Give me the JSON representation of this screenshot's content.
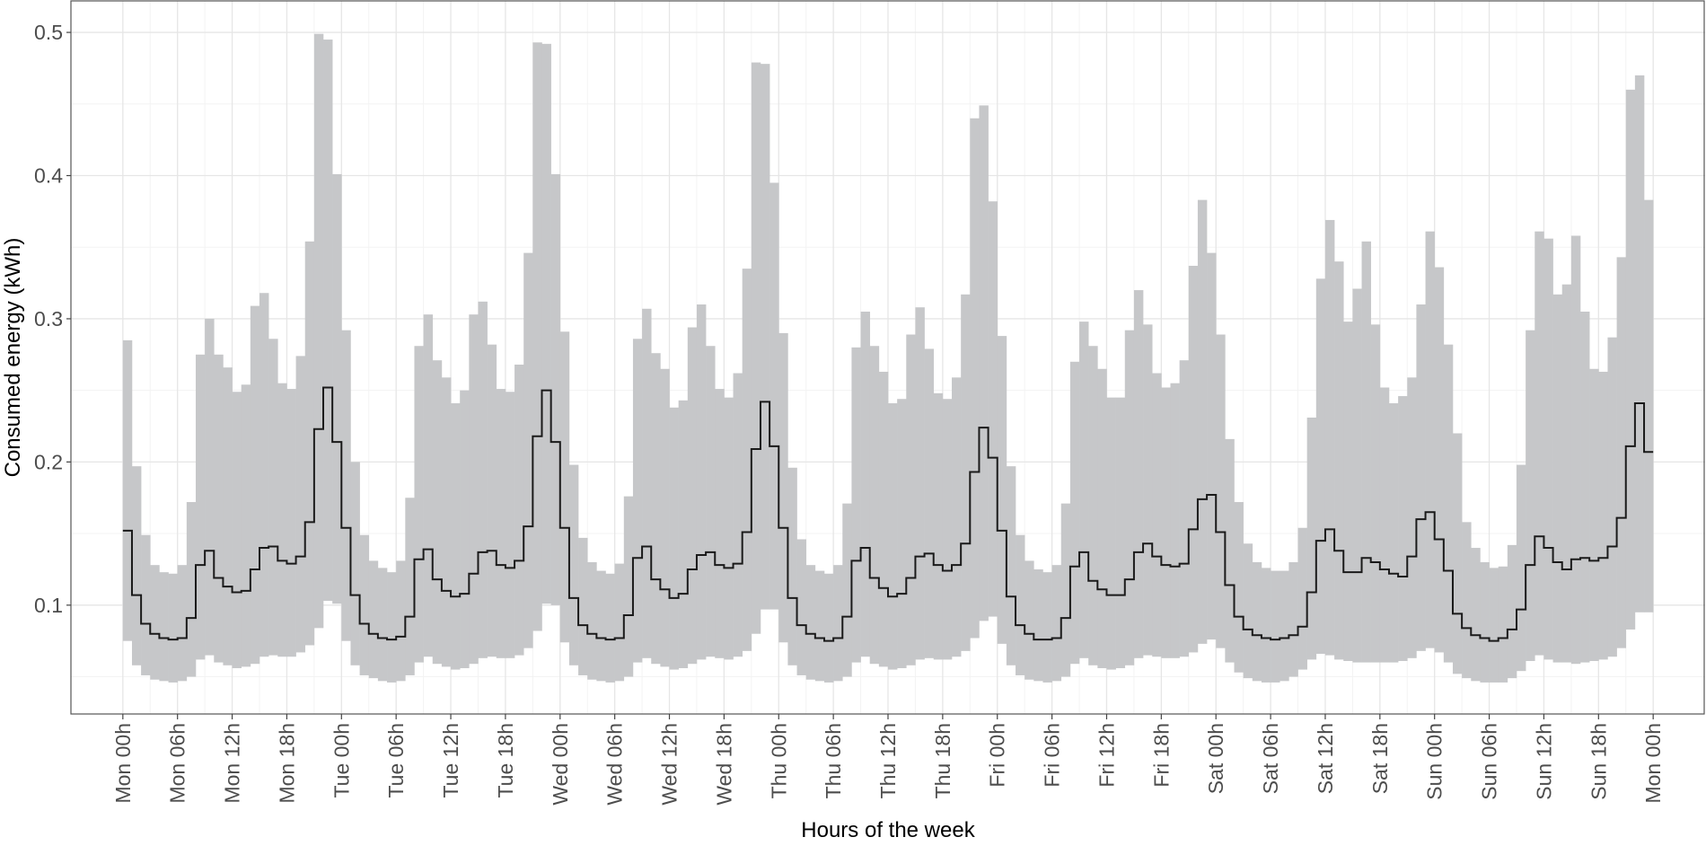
{
  "chart_data": {
    "type": "step",
    "xlabel": "Hours of the week",
    "ylabel": "Consumed energy (kWh)",
    "x": [
      0,
      1,
      2,
      3,
      4,
      5,
      6,
      7,
      8,
      9,
      10,
      11,
      12,
      13,
      14,
      15,
      16,
      17,
      18,
      19,
      20,
      21,
      22,
      23,
      24,
      25,
      26,
      27,
      28,
      29,
      30,
      31,
      32,
      33,
      34,
      35,
      36,
      37,
      38,
      39,
      40,
      41,
      42,
      43,
      44,
      45,
      46,
      47,
      48,
      49,
      50,
      51,
      52,
      53,
      54,
      55,
      56,
      57,
      58,
      59,
      60,
      61,
      62,
      63,
      64,
      65,
      66,
      67,
      68,
      69,
      70,
      71,
      72,
      73,
      74,
      75,
      76,
      77,
      78,
      79,
      80,
      81,
      82,
      83,
      84,
      85,
      86,
      87,
      88,
      89,
      90,
      91,
      92,
      93,
      94,
      95,
      96,
      97,
      98,
      99,
      100,
      101,
      102,
      103,
      104,
      105,
      106,
      107,
      108,
      109,
      110,
      111,
      112,
      113,
      114,
      115,
      116,
      117,
      118,
      119,
      120,
      121,
      122,
      123,
      124,
      125,
      126,
      127,
      128,
      129,
      130,
      131,
      132,
      133,
      134,
      135,
      136,
      137,
      138,
      139,
      140,
      141,
      142,
      143,
      144,
      145,
      146,
      147,
      148,
      149,
      150,
      151,
      152,
      153,
      154,
      155,
      156,
      157,
      158,
      159,
      160,
      161,
      162,
      163,
      164,
      165,
      166,
      167
    ],
    "series": [
      {
        "color": "#1a1a1a",
        "values": [
          0.152,
          0.107,
          0.087,
          0.08,
          0.077,
          0.076,
          0.077,
          0.091,
          0.128,
          0.138,
          0.119,
          0.113,
          0.109,
          0.11,
          0.125,
          0.14,
          0.141,
          0.131,
          0.129,
          0.134,
          0.158,
          0.223,
          0.252,
          0.214,
          0.154,
          0.107,
          0.087,
          0.08,
          0.077,
          0.076,
          0.078,
          0.092,
          0.132,
          0.139,
          0.118,
          0.11,
          0.106,
          0.108,
          0.122,
          0.137,
          0.138,
          0.128,
          0.126,
          0.131,
          0.155,
          0.218,
          0.25,
          0.214,
          0.154,
          0.105,
          0.086,
          0.08,
          0.077,
          0.076,
          0.077,
          0.093,
          0.133,
          0.141,
          0.118,
          0.111,
          0.105,
          0.108,
          0.125,
          0.135,
          0.137,
          0.128,
          0.126,
          0.129,
          0.151,
          0.209,
          0.242,
          0.211,
          0.154,
          0.105,
          0.086,
          0.08,
          0.077,
          0.075,
          0.077,
          0.092,
          0.131,
          0.14,
          0.119,
          0.112,
          0.106,
          0.108,
          0.119,
          0.134,
          0.136,
          0.128,
          0.124,
          0.128,
          0.143,
          0.193,
          0.224,
          0.203,
          0.152,
          0.106,
          0.086,
          0.08,
          0.076,
          0.076,
          0.077,
          0.091,
          0.127,
          0.137,
          0.117,
          0.111,
          0.107,
          0.107,
          0.118,
          0.137,
          0.143,
          0.134,
          0.128,
          0.127,
          0.129,
          0.153,
          0.174,
          0.177,
          0.151,
          0.114,
          0.092,
          0.083,
          0.079,
          0.077,
          0.076,
          0.077,
          0.079,
          0.085,
          0.109,
          0.145,
          0.153,
          0.138,
          0.123,
          0.123,
          0.133,
          0.13,
          0.125,
          0.122,
          0.12,
          0.134,
          0.16,
          0.165,
          0.146,
          0.124,
          0.094,
          0.084,
          0.079,
          0.077,
          0.075,
          0.077,
          0.083,
          0.097,
          0.128,
          0.148,
          0.14,
          0.13,
          0.125,
          0.132,
          0.133,
          0.131,
          0.133,
          0.141,
          0.161,
          0.211,
          0.241,
          0.207
        ]
      }
    ],
    "band": {
      "color": "#c6c7c9",
      "lower": [
        0.075,
        0.058,
        0.051,
        0.048,
        0.047,
        0.046,
        0.047,
        0.05,
        0.062,
        0.065,
        0.06,
        0.058,
        0.056,
        0.057,
        0.059,
        0.064,
        0.065,
        0.064,
        0.064,
        0.067,
        0.072,
        0.084,
        0.103,
        0.101,
        0.075,
        0.058,
        0.051,
        0.049,
        0.047,
        0.046,
        0.047,
        0.051,
        0.06,
        0.064,
        0.059,
        0.057,
        0.055,
        0.056,
        0.059,
        0.063,
        0.064,
        0.063,
        0.063,
        0.065,
        0.07,
        0.082,
        0.101,
        0.1,
        0.074,
        0.058,
        0.051,
        0.048,
        0.047,
        0.046,
        0.047,
        0.05,
        0.06,
        0.063,
        0.059,
        0.057,
        0.055,
        0.056,
        0.059,
        0.062,
        0.064,
        0.063,
        0.062,
        0.064,
        0.068,
        0.08,
        0.097,
        0.097,
        0.074,
        0.058,
        0.051,
        0.048,
        0.047,
        0.046,
        0.047,
        0.05,
        0.06,
        0.064,
        0.059,
        0.057,
        0.055,
        0.056,
        0.058,
        0.062,
        0.063,
        0.062,
        0.062,
        0.064,
        0.068,
        0.077,
        0.089,
        0.092,
        0.073,
        0.058,
        0.051,
        0.048,
        0.047,
        0.046,
        0.047,
        0.05,
        0.059,
        0.063,
        0.058,
        0.056,
        0.055,
        0.056,
        0.058,
        0.063,
        0.065,
        0.064,
        0.063,
        0.063,
        0.064,
        0.067,
        0.073,
        0.076,
        0.07,
        0.06,
        0.053,
        0.049,
        0.047,
        0.046,
        0.046,
        0.047,
        0.05,
        0.055,
        0.062,
        0.066,
        0.065,
        0.062,
        0.061,
        0.06,
        0.06,
        0.06,
        0.06,
        0.06,
        0.061,
        0.063,
        0.068,
        0.07,
        0.067,
        0.06,
        0.052,
        0.049,
        0.047,
        0.046,
        0.046,
        0.046,
        0.049,
        0.054,
        0.061,
        0.065,
        0.062,
        0.06,
        0.06,
        0.059,
        0.06,
        0.061,
        0.062,
        0.064,
        0.07,
        0.083,
        0.095,
        0.095
      ],
      "upper": [
        0.285,
        0.197,
        0.149,
        0.128,
        0.123,
        0.122,
        0.128,
        0.172,
        0.275,
        0.3,
        0.275,
        0.266,
        0.249,
        0.254,
        0.309,
        0.318,
        0.286,
        0.255,
        0.251,
        0.274,
        0.354,
        0.499,
        0.495,
        0.401,
        0.292,
        0.2,
        0.149,
        0.131,
        0.126,
        0.123,
        0.131,
        0.175,
        0.281,
        0.303,
        0.271,
        0.259,
        0.241,
        0.25,
        0.303,
        0.312,
        0.282,
        0.251,
        0.249,
        0.268,
        0.346,
        0.493,
        0.492,
        0.401,
        0.291,
        0.198,
        0.147,
        0.13,
        0.124,
        0.122,
        0.129,
        0.176,
        0.286,
        0.307,
        0.276,
        0.265,
        0.238,
        0.243,
        0.294,
        0.31,
        0.281,
        0.251,
        0.245,
        0.262,
        0.335,
        0.479,
        0.478,
        0.395,
        0.29,
        0.196,
        0.146,
        0.128,
        0.124,
        0.122,
        0.128,
        0.171,
        0.28,
        0.305,
        0.281,
        0.263,
        0.241,
        0.244,
        0.289,
        0.308,
        0.279,
        0.248,
        0.244,
        0.259,
        0.317,
        0.44,
        0.449,
        0.382,
        0.288,
        0.197,
        0.149,
        0.131,
        0.125,
        0.123,
        0.128,
        0.171,
        0.27,
        0.298,
        0.281,
        0.265,
        0.245,
        0.245,
        0.292,
        0.32,
        0.296,
        0.262,
        0.252,
        0.255,
        0.271,
        0.337,
        0.383,
        0.346,
        0.289,
        0.216,
        0.172,
        0.143,
        0.13,
        0.126,
        0.124,
        0.124,
        0.13,
        0.154,
        0.231,
        0.328,
        0.369,
        0.34,
        0.298,
        0.321,
        0.354,
        0.296,
        0.252,
        0.241,
        0.246,
        0.259,
        0.31,
        0.361,
        0.336,
        0.282,
        0.22,
        0.158,
        0.14,
        0.13,
        0.126,
        0.127,
        0.142,
        0.198,
        0.292,
        0.361,
        0.356,
        0.317,
        0.324,
        0.358,
        0.305,
        0.265,
        0.263,
        0.287,
        0.343,
        0.46,
        0.47,
        0.383
      ]
    },
    "xlim": [
      -5.7,
      173.7
    ],
    "ylim": [
      0.024,
      0.522
    ],
    "yticks": [
      0.1,
      0.2,
      0.3,
      0.4,
      0.5
    ],
    "xticks": [
      {
        "value": 0,
        "label": "Mon 00h"
      },
      {
        "value": 6,
        "label": "Mon 06h"
      },
      {
        "value": 12,
        "label": "Mon 12h"
      },
      {
        "value": 18,
        "label": "Mon 18h"
      },
      {
        "value": 24,
        "label": "Tue 00h"
      },
      {
        "value": 30,
        "label": "Tue 06h"
      },
      {
        "value": 36,
        "label": "Tue 12h"
      },
      {
        "value": 42,
        "label": "Tue 18h"
      },
      {
        "value": 48,
        "label": "Wed 00h"
      },
      {
        "value": 54,
        "label": "Wed 06h"
      },
      {
        "value": 60,
        "label": "Wed 12h"
      },
      {
        "value": 66,
        "label": "Wed 18h"
      },
      {
        "value": 72,
        "label": "Thu 00h"
      },
      {
        "value": 78,
        "label": "Thu 06h"
      },
      {
        "value": 84,
        "label": "Thu 12h"
      },
      {
        "value": 90,
        "label": "Thu 18h"
      },
      {
        "value": 96,
        "label": "Fri 00h"
      },
      {
        "value": 102,
        "label": "Fri 06h"
      },
      {
        "value": 108,
        "label": "Fri 12h"
      },
      {
        "value": 114,
        "label": "Fri 18h"
      },
      {
        "value": 120,
        "label": "Sat 00h"
      },
      {
        "value": 126,
        "label": "Sat 06h"
      },
      {
        "value": 132,
        "label": "Sat 12h"
      },
      {
        "value": 138,
        "label": "Sat 18h"
      },
      {
        "value": 144,
        "label": "Sun 00h"
      },
      {
        "value": 150,
        "label": "Sun 06h"
      },
      {
        "value": 156,
        "label": "Sun 12h"
      },
      {
        "value": 162,
        "label": "Sun 18h"
      },
      {
        "value": 168,
        "label": "Mon 00h"
      }
    ],
    "grid": true
  }
}
